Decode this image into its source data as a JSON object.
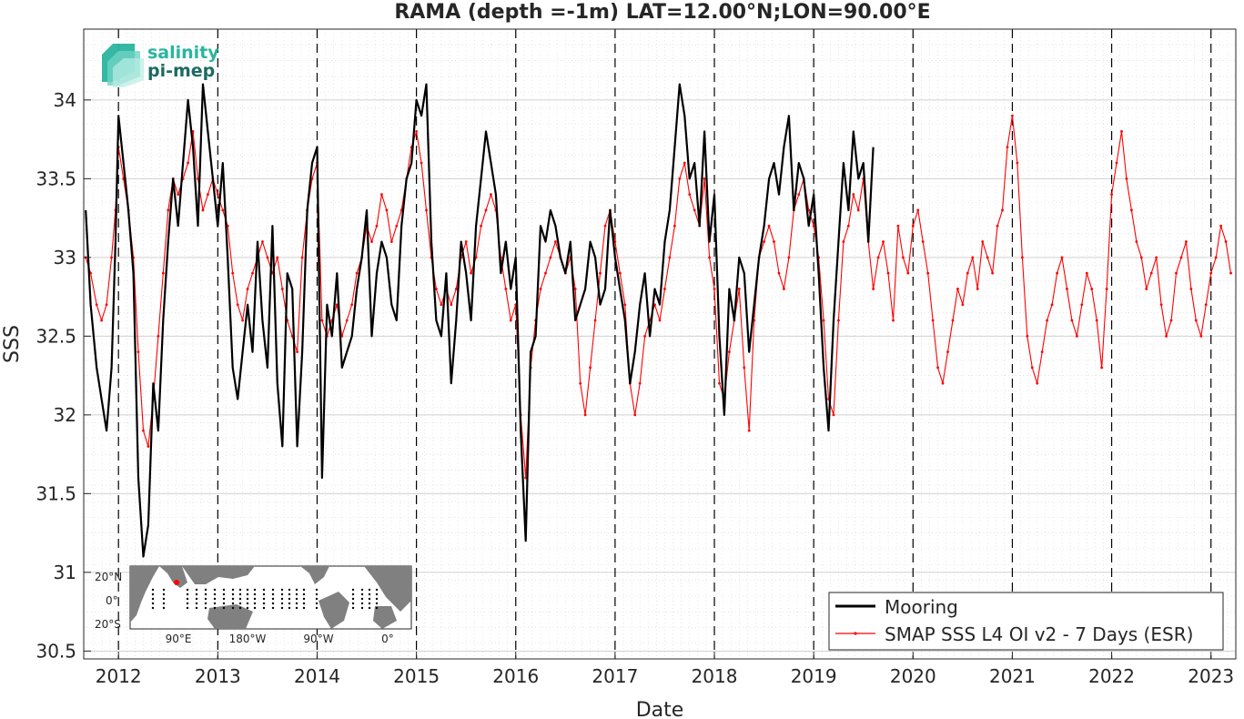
{
  "chart_data": {
    "type": "line",
    "title": "RAMA (depth =-1m) LAT=12.00°N;LON=90.00°E",
    "xlabel": "Date",
    "ylabel": "SSS",
    "xlim": [
      2011.65,
      2023.25
    ],
    "ylim": [
      30.45,
      34.45
    ],
    "grid": true,
    "minor_grid": true,
    "legend_position": "bottom-right",
    "x_ticks": [
      2012,
      2013,
      2014,
      2015,
      2016,
      2017,
      2018,
      2019,
      2020,
      2021,
      2022,
      2023
    ],
    "x_tick_labels": [
      "2012",
      "2013",
      "2014",
      "2015",
      "2016",
      "2017",
      "2018",
      "2019",
      "2020",
      "2021",
      "2022",
      "2023"
    ],
    "y_ticks": [
      30.5,
      31,
      31.5,
      32,
      32.5,
      33,
      33.5,
      34
    ],
    "y_tick_labels": [
      "30.5",
      "31",
      "31.5",
      "32",
      "32.5",
      "33",
      "33.5",
      "34"
    ],
    "year_boundaries": [
      2012,
      2013,
      2014,
      2015,
      2016,
      2017,
      2018,
      2019,
      2020,
      2021,
      2022,
      2023
    ],
    "series": [
      {
        "name": "Mooring",
        "color": "#000000",
        "x": [
          2011.67,
          2011.72,
          2011.78,
          2011.83,
          2011.88,
          2011.93,
          2011.97,
          2012.0,
          2012.05,
          2012.1,
          2012.15,
          2012.2,
          2012.25,
          2012.3,
          2012.35,
          2012.4,
          2012.45,
          2012.5,
          2012.55,
          2012.6,
          2012.65,
          2012.7,
          2012.75,
          2012.8,
          2012.85,
          2012.9,
          2012.95,
          2013.0,
          2013.05,
          2013.1,
          2013.15,
          2013.2,
          2013.25,
          2013.3,
          2013.35,
          2013.4,
          2013.45,
          2013.5,
          2013.55,
          2013.6,
          2013.65,
          2013.7,
          2013.75,
          2013.8,
          2013.85,
          2013.9,
          2013.95,
          2014.0,
          2014.05,
          2014.1,
          2014.15,
          2014.2,
          2014.25,
          2014.3,
          2014.35,
          2014.4,
          2014.45,
          2014.5,
          2014.55,
          2014.6,
          2014.65,
          2014.7,
          2014.75,
          2014.8,
          2014.85,
          2014.9,
          2014.95,
          2015.0,
          2015.05,
          2015.1,
          2015.15,
          2015.2,
          2015.25,
          2015.3,
          2015.35,
          2015.4,
          2015.45,
          2015.5,
          2015.55,
          2015.6,
          2015.65,
          2015.7,
          2015.75,
          2015.8,
          2015.85,
          2015.9,
          2015.95,
          2016.0,
          2016.05,
          2016.1,
          2016.15,
          2016.2,
          2016.25,
          2016.3,
          2016.35,
          2016.4,
          2016.45,
          2016.5,
          2016.55,
          2016.6,
          2016.65,
          2016.7,
          2016.75,
          2016.8,
          2016.85,
          2016.9,
          2016.95,
          2017.0,
          2017.05,
          2017.1,
          2017.15,
          2017.2,
          2017.25,
          2017.3,
          2017.35,
          2017.4,
          2017.45,
          2017.5,
          2017.55,
          2017.6,
          2017.65,
          2017.7,
          2017.75,
          2017.8,
          2017.85,
          2017.9,
          2017.95,
          2018.0,
          2018.05,
          2018.1,
          2018.15,
          2018.2,
          2018.25,
          2018.3,
          2018.35,
          2018.4,
          2018.45,
          2018.5,
          2018.55,
          2018.6,
          2018.65,
          2018.7,
          2018.75,
          2018.8,
          2018.85,
          2018.9,
          2018.95,
          2019.0,
          2019.05,
          2019.1,
          2019.15,
          2019.2,
          2019.25,
          2019.3,
          2019.35,
          2019.4,
          2019.45,
          2019.5,
          2019.55,
          2019.6
        ],
        "y": [
          33.3,
          32.7,
          32.3,
          32.1,
          31.9,
          32.3,
          33.1,
          33.9,
          33.6,
          33.3,
          32.9,
          31.6,
          31.1,
          31.3,
          32.2,
          31.9,
          32.6,
          33.1,
          33.5,
          33.2,
          33.6,
          34.0,
          33.7,
          33.2,
          34.1,
          33.8,
          33.5,
          33.2,
          33.6,
          33.0,
          32.3,
          32.1,
          32.4,
          32.7,
          32.4,
          33.1,
          32.6,
          32.3,
          33.2,
          32.2,
          31.8,
          32.9,
          32.8,
          31.8,
          32.4,
          33.3,
          33.6,
          33.7,
          31.6,
          32.7,
          32.5,
          32.9,
          32.3,
          32.4,
          32.5,
          32.8,
          33.0,
          33.3,
          32.5,
          32.9,
          33.1,
          33.0,
          32.7,
          32.6,
          33.2,
          33.5,
          33.6,
          34.0,
          33.9,
          34.1,
          33.1,
          32.6,
          32.5,
          32.9,
          32.2,
          32.6,
          33.1,
          32.9,
          32.6,
          33.2,
          33.5,
          33.8,
          33.6,
          33.4,
          32.9,
          33.1,
          32.8,
          33.0,
          31.9,
          31.2,
          32.4,
          32.5,
          33.2,
          33.1,
          33.3,
          33.2,
          33.0,
          32.9,
          33.1,
          32.6,
          32.7,
          32.8,
          33.1,
          33.0,
          32.7,
          32.8,
          33.3,
          33.0,
          32.8,
          32.6,
          32.2,
          32.4,
          32.7,
          32.9,
          32.5,
          32.8,
          32.7,
          33.1,
          33.3,
          33.7,
          34.1,
          33.9,
          33.5,
          33.6,
          33.2,
          33.8,
          33.1,
          33.4,
          32.5,
          32.0,
          32.8,
          32.6,
          33.0,
          32.9,
          32.4,
          32.7,
          33.0,
          33.2,
          33.5,
          33.6,
          33.4,
          33.7,
          33.9,
          33.3,
          33.6,
          33.5,
          33.2,
          33.4,
          32.9,
          32.3,
          31.9,
          32.6,
          33.1,
          33.6,
          33.3,
          33.8,
          33.5,
          33.6,
          33.1,
          33.7
        ]
      },
      {
        "name": "SMAP SSS L4 OI v2 - 7 Days (ESR)",
        "color": "#ff0000",
        "x": [
          2011.67,
          2011.72,
          2011.78,
          2011.83,
          2011.88,
          2011.93,
          2011.97,
          2012.0,
          2012.05,
          2012.1,
          2012.15,
          2012.2,
          2012.25,
          2012.3,
          2012.35,
          2012.4,
          2012.45,
          2012.5,
          2012.55,
          2012.6,
          2012.65,
          2012.7,
          2012.75,
          2012.8,
          2012.85,
          2012.9,
          2012.95,
          2013.0,
          2013.05,
          2013.1,
          2013.15,
          2013.2,
          2013.25,
          2013.3,
          2013.35,
          2013.4,
          2013.45,
          2013.5,
          2013.55,
          2013.6,
          2013.65,
          2013.7,
          2013.75,
          2013.8,
          2013.85,
          2013.9,
          2013.95,
          2014.0,
          2014.05,
          2014.1,
          2014.15,
          2014.2,
          2014.25,
          2014.3,
          2014.35,
          2014.4,
          2014.45,
          2014.5,
          2014.55,
          2014.6,
          2014.65,
          2014.7,
          2014.75,
          2014.8,
          2014.85,
          2014.9,
          2014.95,
          2015.0,
          2015.05,
          2015.1,
          2015.15,
          2015.2,
          2015.25,
          2015.3,
          2015.35,
          2015.4,
          2015.45,
          2015.5,
          2015.55,
          2015.6,
          2015.65,
          2015.7,
          2015.75,
          2015.8,
          2015.85,
          2015.9,
          2015.95,
          2016.0,
          2016.05,
          2016.1,
          2016.15,
          2016.2,
          2016.25,
          2016.3,
          2016.35,
          2016.4,
          2016.45,
          2016.5,
          2016.55,
          2016.6,
          2016.65,
          2016.7,
          2016.75,
          2016.8,
          2016.85,
          2016.9,
          2016.95,
          2017.0,
          2017.05,
          2017.1,
          2017.15,
          2017.2,
          2017.25,
          2017.3,
          2017.35,
          2017.4,
          2017.45,
          2017.5,
          2017.55,
          2017.6,
          2017.65,
          2017.7,
          2017.75,
          2017.8,
          2017.85,
          2017.9,
          2017.95,
          2018.0,
          2018.05,
          2018.1,
          2018.15,
          2018.2,
          2018.25,
          2018.3,
          2018.35,
          2018.4,
          2018.45,
          2018.5,
          2018.55,
          2018.6,
          2018.65,
          2018.7,
          2018.75,
          2018.8,
          2018.85,
          2018.9,
          2018.95,
          2019.0,
          2019.05,
          2019.1,
          2019.15,
          2019.2,
          2019.25,
          2019.3,
          2019.35,
          2019.4,
          2019.45,
          2019.5,
          2019.55,
          2019.6,
          2019.65,
          2019.7,
          2019.75,
          2019.8,
          2019.85,
          2019.9,
          2019.95,
          2020.0,
          2020.05,
          2020.1,
          2020.15,
          2020.2,
          2020.25,
          2020.3,
          2020.35,
          2020.4,
          2020.45,
          2020.5,
          2020.55,
          2020.6,
          2020.65,
          2020.7,
          2020.75,
          2020.8,
          2020.85,
          2020.9,
          2020.95,
          2021.0,
          2021.05,
          2021.1,
          2021.15,
          2021.2,
          2021.25,
          2021.3,
          2021.35,
          2021.4,
          2021.45,
          2021.5,
          2021.55,
          2021.6,
          2021.65,
          2021.7,
          2021.75,
          2021.8,
          2021.85,
          2021.9,
          2021.95,
          2022.0,
          2022.05,
          2022.1,
          2022.15,
          2022.2,
          2022.25,
          2022.3,
          2022.35,
          2022.4,
          2022.45,
          2022.5,
          2022.55,
          2022.6,
          2022.65,
          2022.7,
          2022.75,
          2022.8,
          2022.85,
          2022.9,
          2022.95,
          2023.0,
          2023.05,
          2023.1,
          2023.15,
          2023.2
        ],
        "y": [
          33.0,
          32.9,
          32.7,
          32.6,
          32.7,
          33.0,
          33.3,
          33.7,
          33.5,
          33.3,
          33.0,
          32.4,
          31.9,
          31.8,
          32.1,
          32.5,
          32.9,
          33.3,
          33.5,
          33.4,
          33.5,
          33.6,
          33.8,
          33.5,
          33.3,
          33.4,
          33.5,
          33.4,
          33.3,
          33.2,
          32.9,
          32.7,
          32.6,
          32.8,
          32.9,
          33.0,
          33.1,
          33.0,
          32.9,
          33.0,
          32.8,
          32.6,
          32.5,
          32.4,
          33.0,
          33.3,
          33.5,
          33.6,
          32.6,
          32.5,
          32.6,
          32.7,
          32.5,
          32.6,
          32.7,
          32.9,
          33.0,
          33.2,
          33.1,
          33.2,
          33.4,
          33.3,
          33.1,
          33.2,
          33.3,
          33.5,
          33.7,
          33.8,
          33.6,
          33.3,
          33.0,
          32.8,
          32.7,
          32.8,
          32.7,
          32.8,
          33.0,
          33.1,
          32.9,
          33.0,
          33.2,
          33.3,
          33.4,
          33.3,
          33.0,
          32.8,
          32.6,
          32.7,
          32.0,
          31.6,
          32.3,
          32.6,
          32.8,
          32.9,
          33.0,
          33.1,
          33.0,
          32.9,
          33.0,
          32.8,
          32.2,
          32.0,
          32.3,
          32.6,
          32.9,
          33.2,
          33.3,
          33.1,
          32.9,
          32.7,
          32.2,
          32.0,
          32.2,
          32.5,
          32.6,
          32.7,
          32.6,
          32.8,
          33.0,
          33.2,
          33.5,
          33.6,
          33.4,
          33.3,
          33.2,
          33.5,
          33.0,
          32.8,
          32.2,
          32.1,
          32.4,
          32.6,
          32.8,
          32.3,
          31.9,
          32.6,
          33.0,
          33.1,
          33.2,
          33.1,
          32.9,
          32.8,
          33.0,
          33.3,
          33.4,
          33.5,
          33.3,
          33.2,
          33.0,
          32.6,
          32.1,
          32.0,
          32.6,
          33.1,
          33.2,
          33.4,
          33.3,
          33.5,
          33.1,
          32.8,
          33.0,
          33.1,
          32.9,
          32.6,
          33.2,
          33.0,
          32.9,
          33.2,
          33.3,
          33.1,
          32.9,
          32.6,
          32.3,
          32.2,
          32.4,
          32.6,
          32.8,
          32.7,
          32.9,
          33.0,
          32.8,
          33.1,
          33.0,
          32.9,
          33.2,
          33.3,
          33.7,
          33.9,
          33.6,
          33.0,
          32.5,
          32.3,
          32.2,
          32.4,
          32.6,
          32.7,
          32.9,
          33.0,
          32.8,
          32.6,
          32.5,
          32.7,
          32.9,
          32.8,
          32.6,
          32.3,
          32.8,
          33.4,
          33.6,
          33.8,
          33.5,
          33.3,
          33.1,
          33.0,
          32.8,
          32.9,
          33.0,
          32.7,
          32.5,
          32.6,
          32.9,
          33.0,
          33.1,
          32.8,
          32.6,
          32.5,
          32.7,
          32.9,
          33.0,
          33.2,
          33.1,
          32.9
        ]
      }
    ]
  },
  "logo": {
    "line1": "salinity",
    "line2": "pi-mep",
    "colors": [
      "#2ab5a0",
      "#6fd3c4",
      "#b9ece4"
    ]
  },
  "inset_map": {
    "lat_labels": [
      "20°N",
      "0°",
      "20°S"
    ],
    "lon_labels": [
      "90°E",
      "180°W",
      "90°W",
      "0°"
    ],
    "land_color": "#808080",
    "ocean_color": "#ffffff",
    "station_marker_color": "#ff0000"
  }
}
